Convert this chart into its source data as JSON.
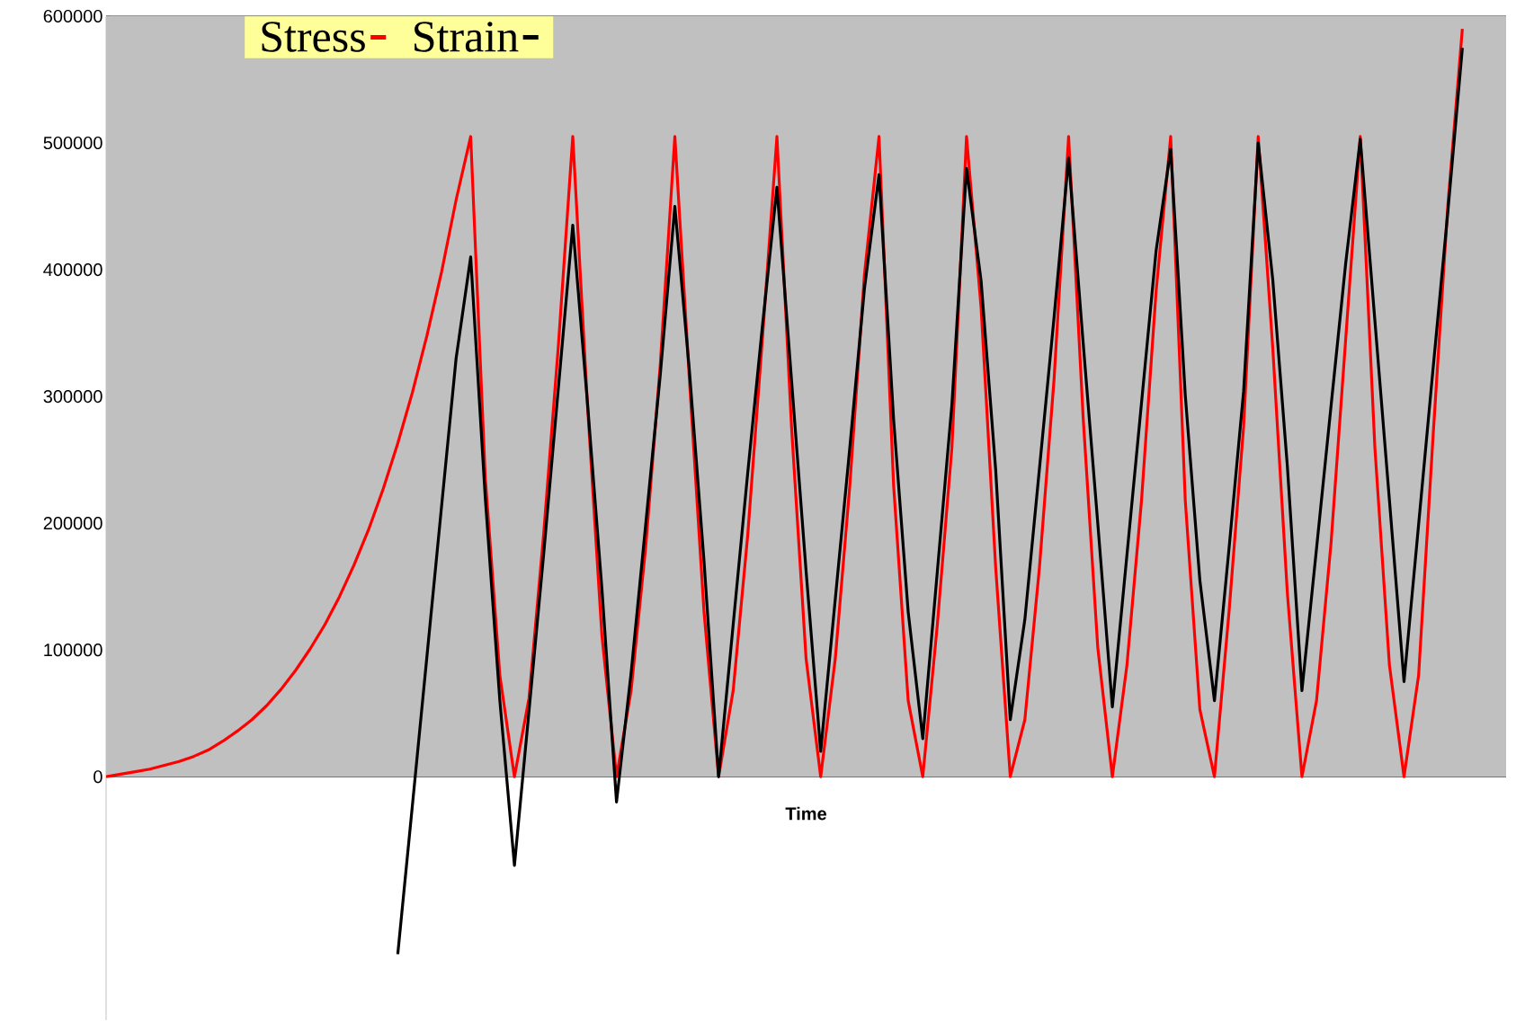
{
  "chart_data": {
    "type": "line",
    "xlabel": "Time",
    "categories": [
      null,
      null,
      null,
      null,
      null,
      null,
      null,
      null,
      null,
      null,
      null,
      null,
      null,
      null,
      null,
      null,
      null,
      null,
      null,
      null,
      null,
      null,
      null,
      null,
      null,
      null,
      null,
      null,
      null,
      null,
      null,
      null,
      null,
      null,
      null,
      null,
      null,
      null,
      null,
      null,
      null,
      null,
      null,
      null,
      null,
      null,
      null,
      null,
      null,
      null,
      null,
      null,
      null,
      null,
      null,
      null,
      null,
      null,
      null,
      null,
      null,
      null,
      null,
      null,
      null,
      null,
      null,
      null,
      null,
      null,
      null,
      null,
      null,
      null,
      null,
      null,
      null,
      null,
      null,
      null,
      null,
      null,
      null,
      null,
      null,
      null,
      null,
      null,
      null,
      null,
      null,
      null,
      null,
      null,
      null,
      null,
      null
    ],
    "series": [
      {
        "name": "Stress",
        "color": "#ff0000",
        "values": [
          0,
          2000,
          4000,
          6000,
          9000,
          12000,
          16000,
          21000,
          28000,
          36000,
          45000,
          56000,
          69000,
          84000,
          101000,
          120000,
          142000,
          167000,
          195000,
          227000,
          263000,
          303000,
          348000,
          398000,
          455000,
          505000,
          236000,
          80000,
          0,
          62000,
          191000,
          338000,
          505000,
          295000,
          111000,
          0,
          68000,
          181000,
          325000,
          505000,
          313000,
          130000,
          0,
          68000,
          191000,
          345000,
          505000,
          276000,
          93000,
          0,
          93000,
          230000,
          396000,
          505000,
          230000,
          60000,
          0,
          120000,
          260000,
          505000,
          370000,
          165000,
          0,
          45000,
          165000,
          313000,
          505000,
          283000,
          102000,
          0,
          88000,
          218000,
          383000,
          505000,
          218000,
          53000,
          0,
          130000,
          276000,
          505000,
          338000,
          145000,
          0,
          60000,
          185000,
          345000,
          505000,
          260000,
          88000,
          0,
          80000,
          270000,
          450000,
          590000,
          null,
          null,
          null
        ]
      },
      {
        "name": "Strain",
        "color": "#000000",
        "values": [
          null,
          null,
          null,
          null,
          null,
          null,
          null,
          null,
          null,
          null,
          null,
          null,
          null,
          null,
          null,
          null,
          null,
          null,
          null,
          null,
          -140000,
          -23000,
          95000,
          213000,
          330000,
          410000,
          220000,
          60000,
          -70000,
          52000,
          175000,
          305000,
          435000,
          296000,
          148000,
          -20000,
          82000,
          199000,
          317000,
          450000,
          320000,
          170000,
          0,
          120000,
          240000,
          355000,
          465000,
          313000,
          162000,
          20000,
          140000,
          260000,
          385000,
          475000,
          282000,
          130000,
          30000,
          162000,
          294000,
          480000,
          391000,
          242000,
          45000,
          124000,
          243000,
          362000,
          488000,
          342000,
          200000,
          55000,
          175000,
          295000,
          415000,
          495000,
          301000,
          155000,
          60000,
          180000,
          304000,
          500000,
          392000,
          245000,
          68000,
          180000,
          293000,
          405000,
          503000,
          360000,
          218000,
          75000,
          199000,
          323000,
          445000,
          575000,
          null,
          null,
          null
        ]
      }
    ],
    "ylim": [
      -192000,
      600000
    ],
    "yticks": [
      0,
      100000,
      200000,
      300000,
      400000,
      500000,
      600000
    ],
    "grid": "y",
    "legend": "top left",
    "marker": "none",
    "line_style": "solid"
  }
}
